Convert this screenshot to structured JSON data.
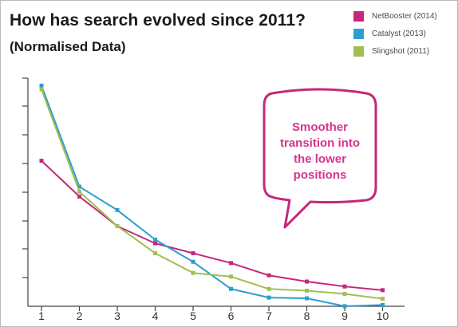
{
  "header": {
    "title": "How has search evolved since 2011?",
    "subtitle": "(Normalised Data)"
  },
  "callout": {
    "lines": [
      "Smoother",
      "transition into",
      "the lower",
      "positions"
    ],
    "color": "#d6338c"
  },
  "chart_data": {
    "type": "line",
    "title": "How has search evolved since 2011?",
    "subtitle": "(Normalised Data)",
    "x": [
      1,
      2,
      3,
      4,
      5,
      6,
      7,
      8,
      9,
      10
    ],
    "xlim": [
      1,
      10
    ],
    "ylim": [
      0,
      1
    ],
    "grid": false,
    "legend_position": "top-right",
    "y_tick_labels_shown": false,
    "series": [
      {
        "name": "NetBooster (2014)",
        "color": "#c4287a",
        "values": [
          0.6,
          0.455,
          0.335,
          0.265,
          0.225,
          0.185,
          0.135,
          0.11,
          0.09,
          0.075
        ]
      },
      {
        "name": "Catalyst (2013)",
        "color": "#2b9fd1",
        "values": [
          0.905,
          0.495,
          0.4,
          0.28,
          0.19,
          0.08,
          0.045,
          0.042,
          0.01,
          0.015
        ]
      },
      {
        "name": "Slingshot (2011)",
        "color": "#a1bf4f",
        "values": [
          0.89,
          0.475,
          0.335,
          0.225,
          0.145,
          0.13,
          0.08,
          0.073,
          0.06,
          0.04
        ]
      }
    ]
  }
}
